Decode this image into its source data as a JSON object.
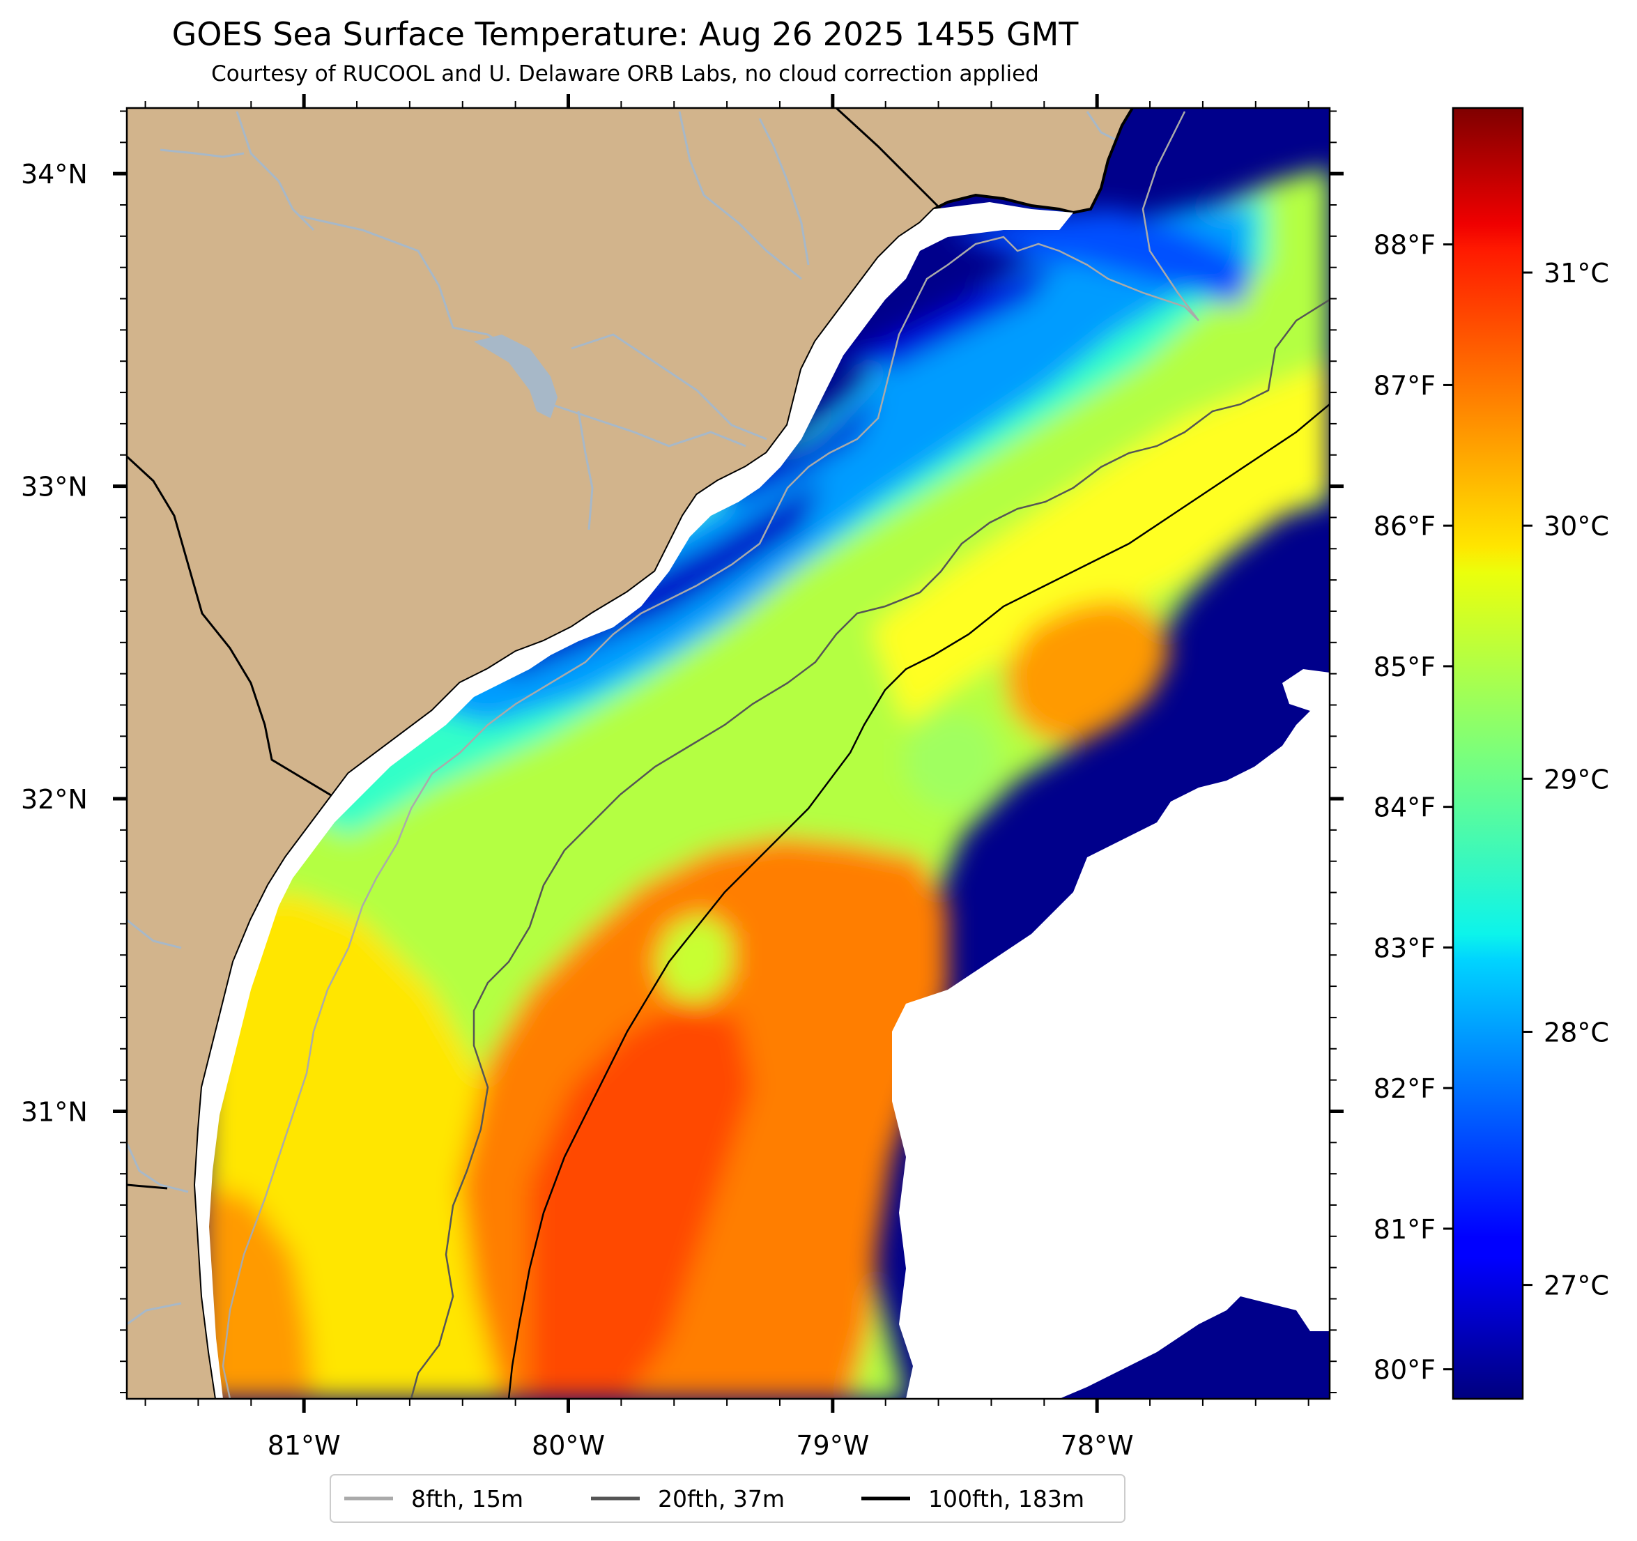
{
  "title": "GOES Sea Surface Temperature: Aug 26 2025 1455 GMT",
  "subtitle": "Courtesy of RUCOOL and U. Delaware ORB Labs, no cloud correction applied",
  "map": {
    "lon_range": [
      -81.67,
      -77.12
    ],
    "lat_range": [
      30.08,
      34.21
    ],
    "lat_ticks": [
      {
        "value": 34,
        "label": "34°N"
      },
      {
        "value": 33,
        "label": "33°N"
      },
      {
        "value": 32,
        "label": "32°N"
      },
      {
        "value": 31,
        "label": "31°N"
      }
    ],
    "lon_ticks": [
      {
        "value": -81,
        "label": "81°W"
      },
      {
        "value": -80,
        "label": "80°W"
      },
      {
        "value": -79,
        "label": "79°W"
      },
      {
        "value": -78,
        "label": "78°W"
      }
    ],
    "f_ticks": [
      "88°F",
      "87°F",
      "86°F",
      "85°F",
      "84°F",
      "83°F",
      "82°F",
      "81°F",
      "80°F"
    ],
    "colors": {
      "land": "#d2b48c",
      "river": "#a7b8c8",
      "cold": "#00008b",
      "cloud": "#ffffff"
    }
  },
  "colorbar": {
    "min_c": 26.55,
    "max_c": 31.65,
    "ticks": [
      {
        "value": 31,
        "label": "31°C"
      },
      {
        "value": 30,
        "label": "30°C"
      },
      {
        "value": 29,
        "label": "29°C"
      },
      {
        "value": 28,
        "label": "28°C"
      },
      {
        "value": 27,
        "label": "27°C"
      }
    ],
    "colormap": "jet"
  },
  "legend": {
    "entries": [
      {
        "label": "8fth, 15m",
        "color": "#aaaaaa"
      },
      {
        "label": "20fth, 37m",
        "color": "#555555"
      },
      {
        "label": "100fth, 183m",
        "color": "#000000"
      }
    ]
  }
}
